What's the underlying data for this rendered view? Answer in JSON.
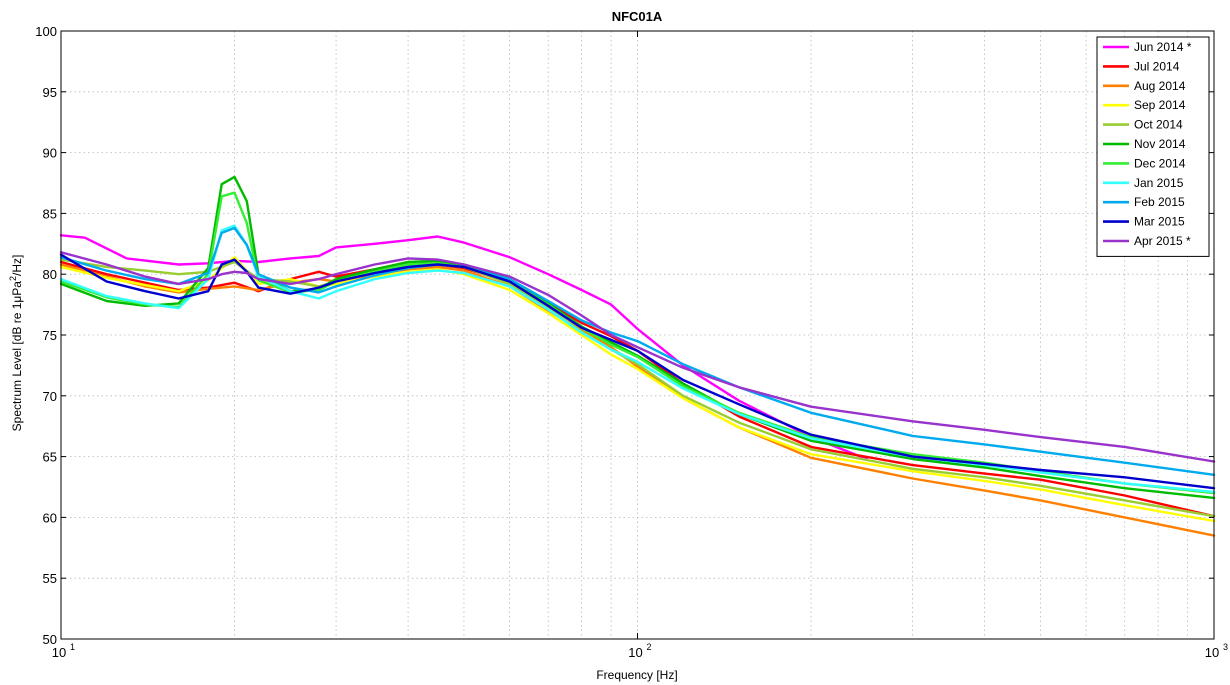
{
  "chart_data": {
    "type": "line",
    "title": "NFC01A",
    "xlabel": "Frequency [Hz]",
    "ylabel": "Spectrum Level [dB re 1μPa²/Hz]",
    "xscale": "log",
    "xlim": [
      10,
      1000
    ],
    "ylim": [
      50,
      100
    ],
    "grid": true,
    "legend_position": "top-right",
    "x_ticks": [
      10,
      100,
      1000
    ],
    "x_tick_labels": [
      "10",
      "10",
      "10"
    ],
    "x_tick_exponents": [
      "1",
      "2",
      "3"
    ],
    "y_ticks": [
      50,
      55,
      60,
      65,
      70,
      75,
      80,
      85,
      90,
      95,
      100
    ],
    "series": [
      {
        "name": "Jun 2014 *",
        "color": "#ff00ff",
        "x": [
          10,
          11,
          13,
          16,
          18,
          20,
          22,
          25,
          28,
          30,
          35,
          40,
          45,
          50,
          60,
          70,
          80,
          90,
          100,
          120,
          150,
          200,
          250
        ],
        "y": [
          83.2,
          83.0,
          81.3,
          80.8,
          80.9,
          81.1,
          81.0,
          81.3,
          81.5,
          82.2,
          82.5,
          82.8,
          83.1,
          82.6,
          81.4,
          80.0,
          78.7,
          77.5,
          75.5,
          72.5,
          69.6,
          66.6,
          64.8
        ]
      },
      {
        "name": "Jul 2014",
        "color": "#ff0000",
        "x": [
          10,
          12,
          14,
          16,
          18,
          20,
          22,
          25,
          28,
          30,
          35,
          40,
          45,
          50,
          60,
          70,
          80,
          90,
          100,
          120,
          150,
          200,
          300,
          400,
          500,
          700,
          1000
        ],
        "y": [
          81.0,
          80.0,
          79.3,
          78.7,
          78.9,
          79.3,
          78.6,
          79.6,
          80.2,
          79.8,
          80.4,
          81.0,
          80.8,
          80.5,
          79.3,
          77.6,
          76.0,
          74.9,
          73.7,
          71.0,
          68.3,
          65.8,
          64.3,
          63.6,
          63.1,
          61.8,
          60.1
        ]
      },
      {
        "name": "Aug 2014",
        "color": "#ff8000",
        "x": [
          10,
          12,
          14,
          16,
          18,
          20,
          22,
          25,
          28,
          30,
          35,
          40,
          45,
          50,
          60,
          70,
          80,
          90,
          100,
          120,
          150,
          200,
          300,
          400,
          500,
          700,
          1000
        ],
        "y": [
          80.8,
          79.8,
          79.0,
          78.5,
          78.8,
          79.0,
          78.7,
          79.3,
          79.6,
          79.4,
          80.0,
          80.4,
          80.6,
          80.3,
          79.0,
          77.0,
          75.4,
          74.0,
          72.4,
          69.8,
          67.4,
          64.9,
          63.2,
          62.2,
          61.4,
          60.0,
          58.5
        ]
      },
      {
        "name": "Sep 2014",
        "color": "#ffff00",
        "x": [
          10,
          12,
          14,
          16,
          18,
          20,
          22,
          25,
          28,
          30,
          35,
          40,
          45,
          50,
          60,
          70,
          80,
          90,
          100,
          120,
          150,
          200,
          300,
          400,
          500,
          700,
          1000
        ],
        "y": [
          80.6,
          79.7,
          79.1,
          78.6,
          79.5,
          81.4,
          79.2,
          79.6,
          79.0,
          79.2,
          79.8,
          80.2,
          80.4,
          80.0,
          78.7,
          76.8,
          75.0,
          73.4,
          72.2,
          69.8,
          67.4,
          65.2,
          63.8,
          63.0,
          62.3,
          61.0,
          59.7
        ]
      },
      {
        "name": "Oct 2014",
        "color": "#99cc33",
        "x": [
          10,
          12,
          14,
          16,
          18,
          20,
          22,
          25,
          28,
          30,
          35,
          40,
          45,
          50,
          60,
          70,
          80,
          90,
          100,
          120,
          150,
          200,
          300,
          400,
          500,
          700,
          1000
        ],
        "y": [
          81.2,
          80.6,
          80.3,
          80.0,
          80.2,
          81.0,
          79.6,
          79.4,
          79.0,
          79.4,
          80.2,
          80.9,
          81.0,
          80.6,
          79.2,
          77.2,
          75.3,
          73.8,
          72.6,
          70.0,
          67.8,
          65.6,
          64.0,
          63.3,
          62.6,
          61.4,
          60.1
        ]
      },
      {
        "name": "Nov 2014",
        "color": "#00bb00",
        "x": [
          10,
          12,
          14,
          16,
          18,
          19,
          20,
          21,
          22,
          25,
          28,
          30,
          35,
          40,
          45,
          50,
          60,
          70,
          80,
          90,
          100,
          120,
          150,
          200,
          300,
          400,
          500,
          700,
          1000
        ],
        "y": [
          79.2,
          77.8,
          77.4,
          77.6,
          80.5,
          87.4,
          88.0,
          86.0,
          80.0,
          78.6,
          78.8,
          79.6,
          80.4,
          81.0,
          81.1,
          80.8,
          79.6,
          77.6,
          75.7,
          74.4,
          73.3,
          71.0,
          68.5,
          66.3,
          64.8,
          64.1,
          63.4,
          62.4,
          61.6
        ]
      },
      {
        "name": "Dec 2014",
        "color": "#33ee33",
        "x": [
          10,
          12,
          14,
          16,
          18,
          19,
          20,
          21,
          22,
          25,
          28,
          30,
          35,
          40,
          45,
          50,
          60,
          70,
          80,
          90,
          100,
          120,
          150,
          200,
          300,
          400,
          500,
          700,
          1000
        ],
        "y": [
          79.4,
          78.1,
          77.5,
          77.3,
          80.0,
          86.4,
          86.7,
          84.2,
          79.5,
          78.5,
          78.7,
          79.4,
          80.2,
          80.8,
          80.9,
          80.6,
          79.4,
          77.5,
          75.6,
          74.2,
          73.2,
          70.8,
          68.6,
          66.6,
          65.2,
          64.5,
          63.8,
          62.8,
          62.0
        ]
      },
      {
        "name": "Jan 2015",
        "color": "#33ffff",
        "x": [
          10,
          12,
          14,
          16,
          18,
          19,
          20,
          21,
          22,
          25,
          28,
          30,
          35,
          40,
          45,
          50,
          60,
          70,
          80,
          90,
          100,
          120,
          150,
          200,
          300,
          400,
          500,
          700,
          1000
        ],
        "y": [
          79.6,
          78.2,
          77.6,
          77.2,
          79.6,
          83.6,
          84.0,
          82.4,
          79.8,
          78.6,
          78.0,
          78.6,
          79.6,
          80.1,
          80.3,
          80.1,
          79.0,
          77.1,
          75.2,
          73.8,
          72.8,
          70.6,
          68.5,
          66.5,
          65.0,
          64.3,
          63.7,
          62.8,
          62.1
        ]
      },
      {
        "name": "Feb 2015",
        "color": "#00aaee",
        "x": [
          10,
          12,
          14,
          16,
          18,
          19,
          20,
          21,
          22,
          25,
          28,
          30,
          35,
          40,
          45,
          50,
          60,
          70,
          80,
          90,
          100,
          120,
          150,
          200,
          300,
          400,
          500,
          700,
          1000
        ],
        "y": [
          81.4,
          80.3,
          79.6,
          79.2,
          80.1,
          83.4,
          83.8,
          82.4,
          80.0,
          78.9,
          78.5,
          79.0,
          79.9,
          80.5,
          80.8,
          80.6,
          79.6,
          77.8,
          76.2,
          75.2,
          74.5,
          72.6,
          70.7,
          68.6,
          66.7,
          66.0,
          65.4,
          64.5,
          63.5
        ]
      },
      {
        "name": "Mar 2015",
        "color": "#0000cc",
        "x": [
          10,
          12,
          14,
          16,
          18,
          19,
          20,
          21,
          22,
          25,
          28,
          30,
          35,
          40,
          45,
          50,
          60,
          70,
          80,
          90,
          100,
          120,
          150,
          200,
          300,
          400,
          500,
          700,
          1000
        ],
        "y": [
          81.6,
          79.4,
          78.6,
          78.0,
          78.6,
          80.8,
          81.2,
          80.2,
          78.9,
          78.4,
          78.9,
          79.4,
          80.1,
          80.6,
          80.8,
          80.6,
          79.4,
          77.4,
          75.6,
          74.6,
          73.7,
          71.3,
          69.3,
          66.8,
          65.0,
          64.4,
          63.9,
          63.3,
          62.4
        ]
      },
      {
        "name": "Apr 2015 *",
        "color": "#9933cc",
        "x": [
          10,
          12,
          14,
          16,
          18,
          19,
          20,
          21,
          22,
          25,
          28,
          30,
          35,
          40,
          45,
          50,
          60,
          70,
          80,
          90,
          100,
          120,
          150,
          200,
          300,
          400,
          500,
          700,
          1000
        ],
        "y": [
          81.8,
          80.8,
          79.8,
          79.2,
          79.6,
          80.0,
          80.2,
          80.1,
          79.6,
          79.2,
          79.6,
          80.0,
          80.8,
          81.3,
          81.2,
          80.8,
          79.8,
          78.3,
          76.6,
          75.0,
          74.0,
          72.3,
          70.7,
          69.1,
          67.9,
          67.2,
          66.6,
          65.8,
          64.6
        ]
      }
    ]
  }
}
